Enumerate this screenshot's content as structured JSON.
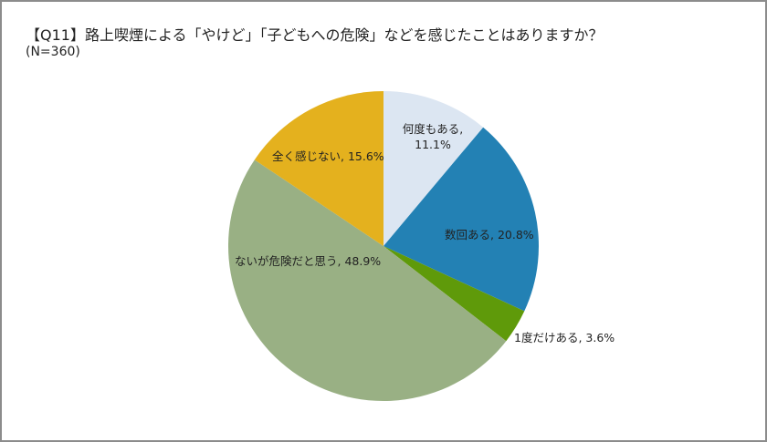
{
  "header": {
    "title": "【Q11】路上喫煙による「やけど」「子どもへの危険」などを感じたことはありますか？",
    "subtitle": "(N=360)"
  },
  "chart_data": {
    "type": "pie",
    "title": "【Q11】路上喫煙による「やけど」「子どもへの危険」などを感じたことはありますか？",
    "subtitle": "(N=360)",
    "categories": [
      "何度もある",
      "数回ある",
      "1度だけある",
      "ないが危険だと思う",
      "全く感じない"
    ],
    "values": [
      11.1,
      20.8,
      3.6,
      48.9,
      15.6
    ],
    "unit": "%",
    "colors": [
      "#dce6f2",
      "#2381b4",
      "#5f9a0a",
      "#99b084",
      "#e4b11e"
    ],
    "start_angle": "12 o'clock, clockwise",
    "legend": "none (data labels with category name and percent)",
    "labels": [
      {
        "line1": "何度もある,",
        "line2": "11.1%"
      },
      {
        "line1": "数回ある, 20.8%"
      },
      {
        "line1": "1度だけある, 3.6%"
      },
      {
        "line1": "ないが危険だと思う, 48.9%"
      },
      {
        "line1": "全く感じない, 15.6%"
      }
    ]
  }
}
